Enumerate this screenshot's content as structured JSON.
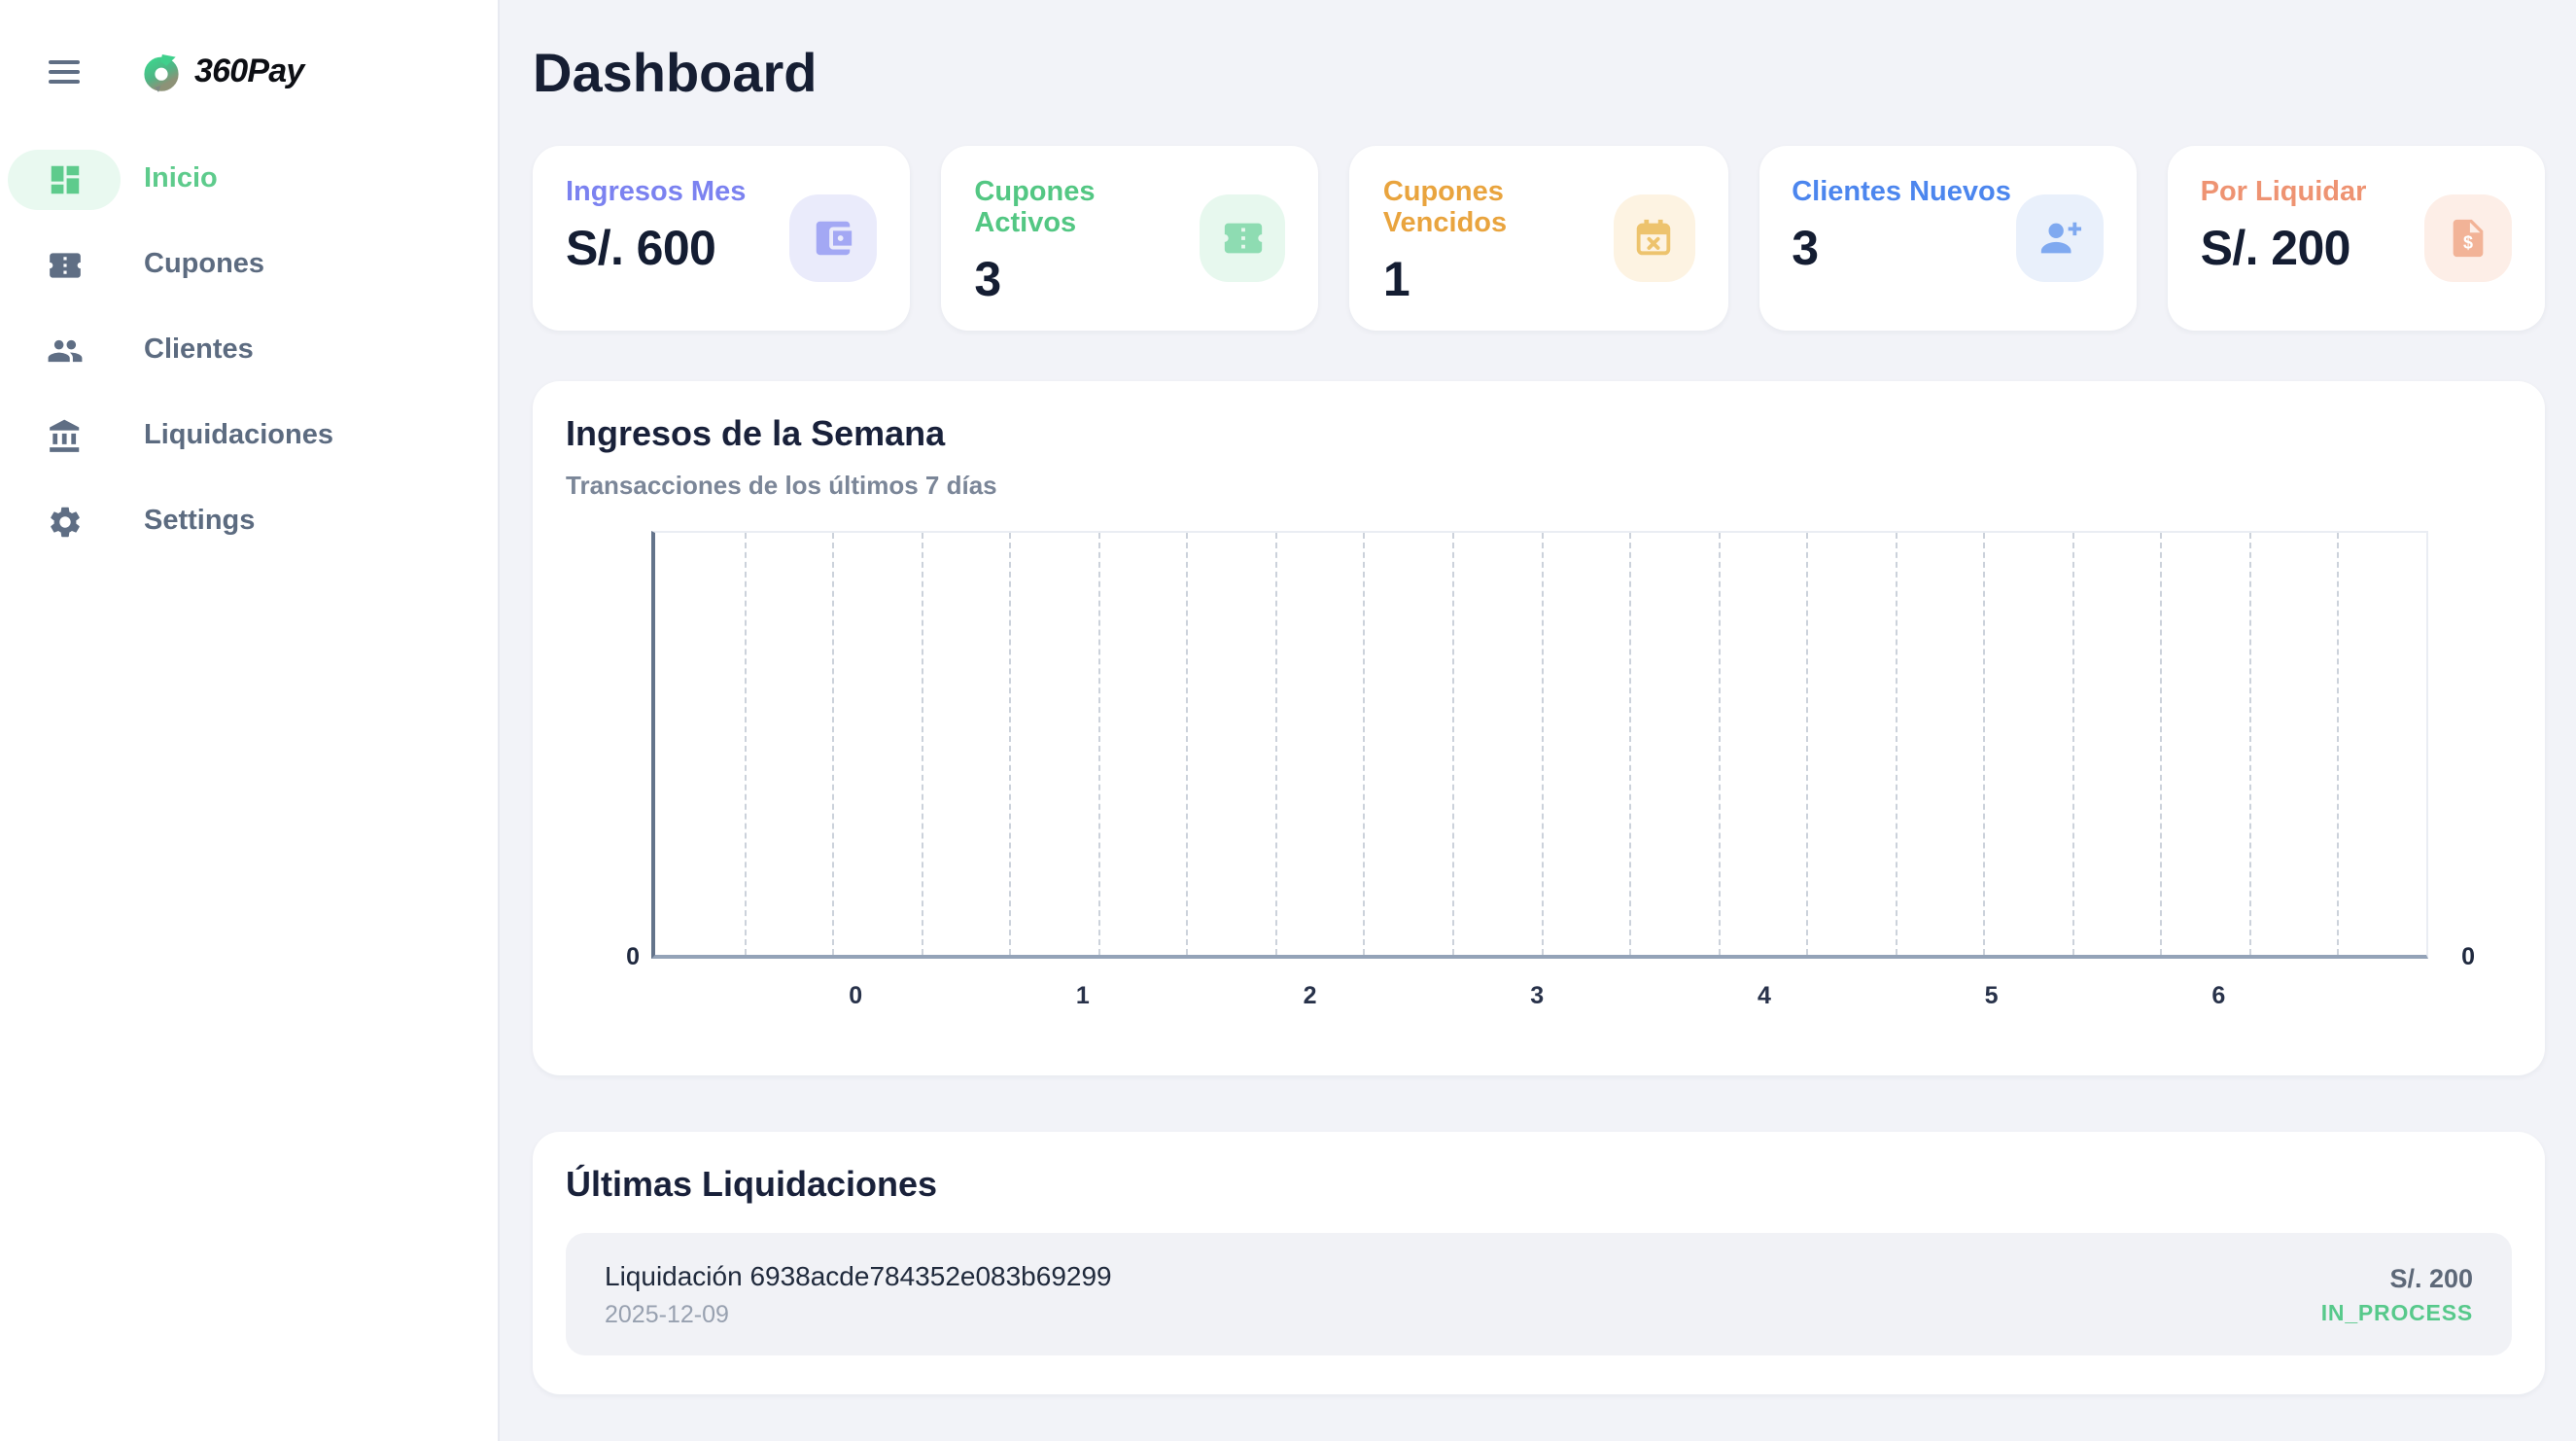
{
  "theme": {
    "background": "#f2f3f8",
    "card_bg": "#ffffff",
    "title_color": "#161e33",
    "sidebar_text": "#5c6b80",
    "accent_green": "#5ecb8c",
    "active_pill_bg": "#e9f9f0",
    "status_green": "#57c98b"
  },
  "sidebar": {
    "logo_text": "360Pay",
    "items": [
      {
        "label": "Inicio",
        "icon": "dashboard-icon",
        "active": true
      },
      {
        "label": "Cupones",
        "icon": "ticket-icon",
        "active": false
      },
      {
        "label": "Clientes",
        "icon": "people-icon",
        "active": false
      },
      {
        "label": "Liquidaciones",
        "icon": "bank-icon",
        "active": false
      },
      {
        "label": "Settings",
        "icon": "gear-icon",
        "active": false
      }
    ]
  },
  "header": {
    "title": "Dashboard"
  },
  "stats": [
    {
      "label": "Ingresos Mes",
      "value": "S/. 600",
      "icon": "wallet-icon",
      "accent": "#7b82f0",
      "icon_color": "#a3a8f4",
      "icon_bg": "#eaebfb"
    },
    {
      "label": "Cupones Activos",
      "value": "3",
      "icon": "ticket-icon",
      "accent": "#53c783",
      "icon_color": "#8edcb2",
      "icon_bg": "#e7f8ee"
    },
    {
      "label": "Cupones Vencidos",
      "value": "1",
      "icon": "calendar-x-icon",
      "accent": "#e9a43e",
      "icon_color": "#edc36d",
      "icon_bg": "#fdf3e2"
    },
    {
      "label": "Clientes Nuevos",
      "value": "3",
      "icon": "person-add-icon",
      "accent": "#4c86ee",
      "icon_color": "#7fa9f0",
      "icon_bg": "#e9f0fb"
    },
    {
      "label": "Por Liquidar",
      "value": "S/. 200",
      "icon": "receipt-icon",
      "accent": "#ee9372",
      "icon_color": "#f2b397",
      "icon_bg": "#fdeee7"
    }
  ],
  "chart_card": {
    "title": "Ingresos de la Semana",
    "subtitle": "Transacciones de los últimos 7 días"
  },
  "chart_data": {
    "type": "line",
    "title": "Ingresos de la Semana",
    "subtitle": "Transacciones de los últimos 7 días",
    "series": [],
    "x_tick_labels": [
      "0",
      "1",
      "2",
      "3",
      "4",
      "5",
      "6"
    ],
    "y_tick_labels_left": [
      "0"
    ],
    "y_tick_labels_right": [
      "0"
    ],
    "ylim": [
      0,
      0
    ],
    "grid": "vertical-dashed",
    "legend": "none",
    "layout": {
      "vertical_gridlines": 19,
      "x_label_start_pct": 11.5,
      "x_label_end_pct": 88.2
    }
  },
  "liquidaciones": {
    "title": "Últimas Liquidaciones",
    "rows": [
      {
        "name": "Liquidación 6938acde784352e083b69299",
        "date": "2025-12-09",
        "amount": "S/. 200",
        "status": "IN_PROCESS"
      }
    ]
  }
}
